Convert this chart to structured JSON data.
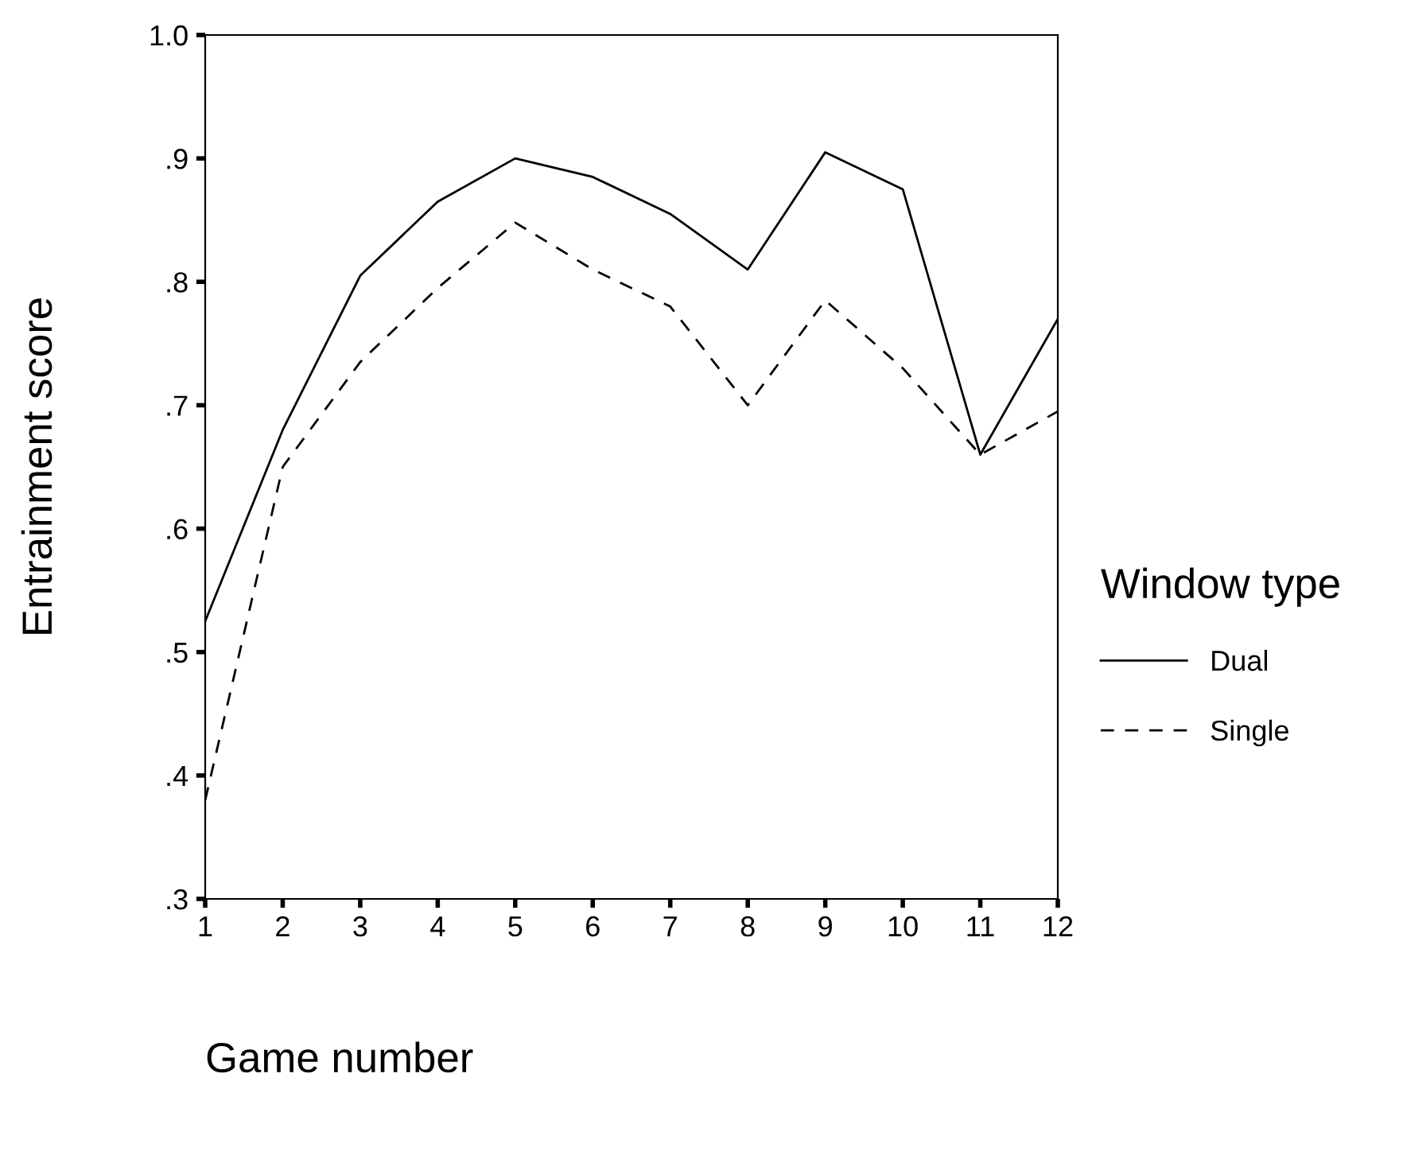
{
  "chart_data": {
    "type": "line",
    "xlabel": "Game number",
    "ylabel": "Entrainment score",
    "legend_title": "Window type",
    "legend": "right",
    "x": [
      1,
      2,
      3,
      4,
      5,
      6,
      7,
      8,
      9,
      10,
      11,
      12
    ],
    "series": [
      {
        "name": "Dual",
        "color": "#000000",
        "line_style": "solid",
        "values": [
          0.525,
          0.68,
          0.805,
          0.865,
          0.9,
          0.885,
          0.855,
          0.81,
          0.905,
          0.875,
          0.66,
          0.77
        ]
      },
      {
        "name": "Single",
        "color": "#000000",
        "line_style": "dashed",
        "values": [
          0.38,
          0.65,
          0.735,
          0.795,
          0.848,
          0.81,
          0.78,
          0.7,
          0.785,
          0.73,
          0.66,
          0.695
        ]
      }
    ],
    "xlim": [
      1,
      12
    ],
    "xticks": [
      1,
      2,
      3,
      4,
      5,
      6,
      7,
      8,
      9,
      10,
      11,
      12
    ],
    "ylim": [
      0.3,
      1.0
    ],
    "yticks": [
      {
        "value": 0.3,
        "label": ".3"
      },
      {
        "value": 0.4,
        "label": ".4"
      },
      {
        "value": 0.5,
        "label": ".5"
      },
      {
        "value": 0.6,
        "label": ".6"
      },
      {
        "value": 0.7,
        "label": ".7"
      },
      {
        "value": 0.8,
        "label": ".8"
      },
      {
        "value": 0.9,
        "label": ".9"
      },
      {
        "value": 1.0,
        "label": "1.0"
      }
    ],
    "grid": false
  }
}
